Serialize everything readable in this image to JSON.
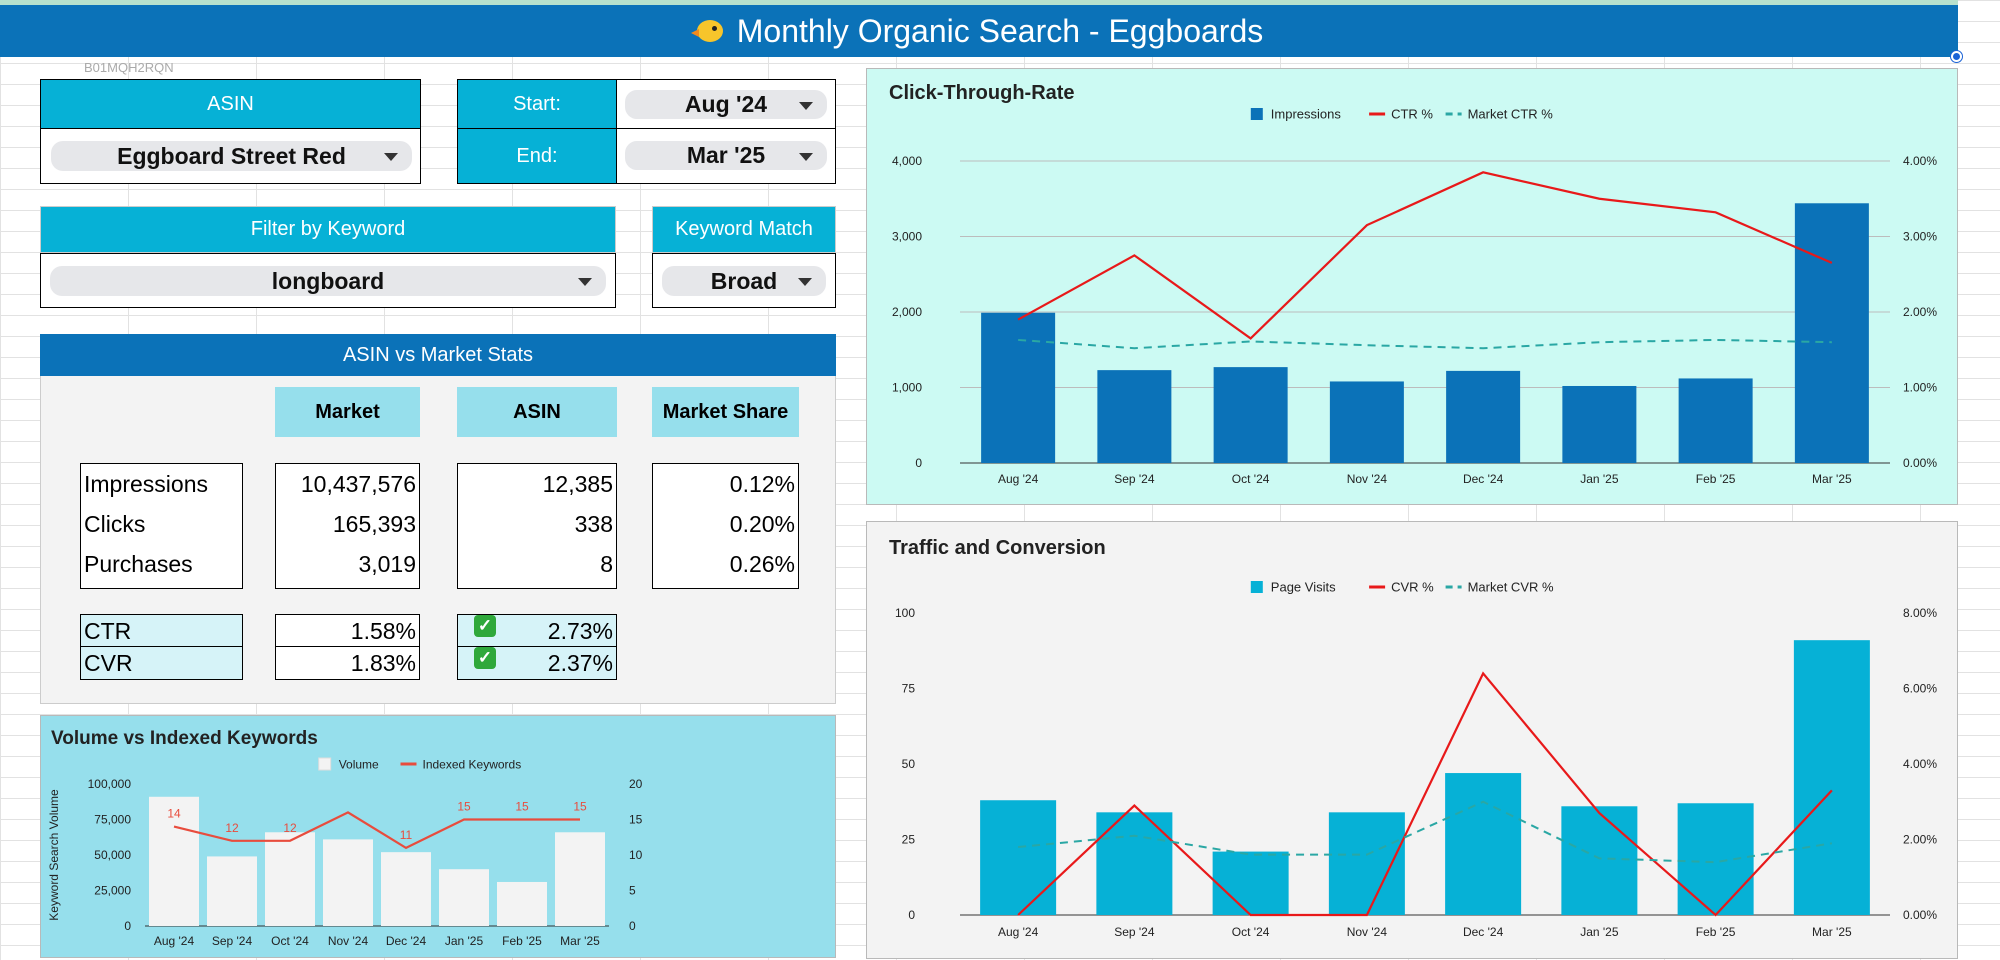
{
  "page_title": "Monthly Organic Search - Eggboards",
  "asin_note": "B01MQH2RQN",
  "filters": {
    "asin_label": "ASIN",
    "asin_value": "Eggboard Street Red",
    "start_label": "Start:",
    "start_value": "Aug '24",
    "end_label": "End:",
    "end_value": "Mar '25",
    "keyword_label": "Filter by Keyword",
    "keyword_value": "longboard",
    "match_label": "Keyword Match",
    "match_value": "Broad"
  },
  "stats": {
    "title": "ASIN vs Market Stats",
    "columns": [
      "Market",
      "ASIN",
      "Market Share"
    ],
    "rows": [
      {
        "label": "Impressions",
        "market": "10,437,576",
        "asin": "12,385",
        "share": "0.12%"
      },
      {
        "label": "Clicks",
        "market": "165,393",
        "asin": "338",
        "share": "0.20%"
      },
      {
        "label": "Purchases",
        "market": "3,019",
        "asin": "8",
        "share": "0.26%"
      }
    ],
    "rates": [
      {
        "label": "CTR",
        "market": "1.58%",
        "asin": "2.73%",
        "icon": "check-icon"
      },
      {
        "label": "CVR",
        "market": "1.83%",
        "asin": "2.37%",
        "icon": "check-icon"
      }
    ]
  },
  "chart_data": [
    {
      "id": "ctr",
      "type": "bar+line",
      "title": "Click-Through-Rate",
      "categories": [
        "Aug '24",
        "Sep '24",
        "Oct '24",
        "Nov '24",
        "Dec '24",
        "Jan '25",
        "Feb '25",
        "Mar '25"
      ],
      "left_ticks": [
        "0",
        "1,000",
        "2,000",
        "3,000",
        "4,000"
      ],
      "right_ticks": [
        "0.00%",
        "1.00%",
        "2.00%",
        "3.00%",
        "4.00%"
      ],
      "ylim_left": [
        0,
        4000
      ],
      "ylim_right": [
        0,
        4
      ],
      "series": [
        {
          "name": "Impressions",
          "kind": "bar",
          "axis": "left",
          "color": "#0b72b8",
          "values": [
            1990,
            1230,
            1270,
            1080,
            1220,
            1020,
            1120,
            3440
          ]
        },
        {
          "name": "CTR %",
          "kind": "line",
          "axis": "right",
          "color": "#e8191a",
          "values": [
            1.9,
            2.75,
            1.65,
            3.15,
            3.85,
            3.5,
            3.32,
            2.65
          ]
        },
        {
          "name": "Market CTR %",
          "kind": "dashed",
          "axis": "right",
          "color": "#2aa7a4",
          "values": [
            1.63,
            1.52,
            1.61,
            1.56,
            1.52,
            1.6,
            1.63,
            1.6
          ]
        }
      ],
      "grid": true,
      "legend": "top-center"
    },
    {
      "id": "traffic",
      "type": "bar+line",
      "title": "Traffic and Conversion",
      "categories": [
        "Aug '24",
        "Sep '24",
        "Oct '24",
        "Nov '24",
        "Dec '24",
        "Jan '25",
        "Feb '25",
        "Mar '25"
      ],
      "left_ticks": [
        "0",
        "25",
        "50",
        "75",
        "100"
      ],
      "right_ticks": [
        "0.00%",
        "2.00%",
        "4.00%",
        "6.00%",
        "8.00%"
      ],
      "ylim_left": [
        0,
        100
      ],
      "ylim_right": [
        0,
        8
      ],
      "series": [
        {
          "name": "Page Visits",
          "kind": "bar",
          "axis": "left",
          "color": "#06b1d6",
          "values": [
            38,
            34,
            21,
            34,
            47,
            36,
            37,
            91
          ]
        },
        {
          "name": "CVR %",
          "kind": "line",
          "axis": "right",
          "color": "#e8191a",
          "values": [
            0,
            2.9,
            0,
            0,
            6.4,
            2.7,
            0,
            3.3
          ]
        },
        {
          "name": "Market CVR %",
          "kind": "dashed",
          "axis": "right",
          "color": "#2aa7a4",
          "values": [
            1.8,
            2.1,
            1.6,
            1.6,
            3.0,
            1.5,
            1.4,
            1.9
          ]
        }
      ],
      "grid": false,
      "legend": "top-center"
    },
    {
      "id": "volume",
      "type": "bar+line",
      "title": "Volume vs Indexed Keywords",
      "ylabel": "Keyword Search Volume",
      "categories": [
        "Aug '24",
        "Sep '24",
        "Oct '24",
        "Nov '24",
        "Dec '24",
        "Jan '25",
        "Feb '25",
        "Mar '25"
      ],
      "left_ticks": [
        "0",
        "25,000",
        "50,000",
        "75,000",
        "100,000"
      ],
      "right_ticks": [
        "0",
        "5",
        "10",
        "15",
        "20"
      ],
      "ylim_left": [
        0,
        100000
      ],
      "ylim_right": [
        0,
        20
      ],
      "series": [
        {
          "name": "Volume",
          "kind": "bar",
          "axis": "left",
          "color": "#f3f3f3",
          "values": [
            91000,
            49000,
            66000,
            61000,
            52000,
            40000,
            31000,
            66000
          ]
        },
        {
          "name": "Indexed Keywords",
          "kind": "line",
          "axis": "right",
          "color": "#e84c3d",
          "values": [
            14,
            12,
            12,
            16,
            11,
            15,
            15,
            15
          ],
          "labels": [
            "14",
            "12",
            "12",
            "",
            "11",
            "15",
            "15",
            "15"
          ]
        }
      ],
      "grid": false,
      "legend": "top-center"
    }
  ]
}
